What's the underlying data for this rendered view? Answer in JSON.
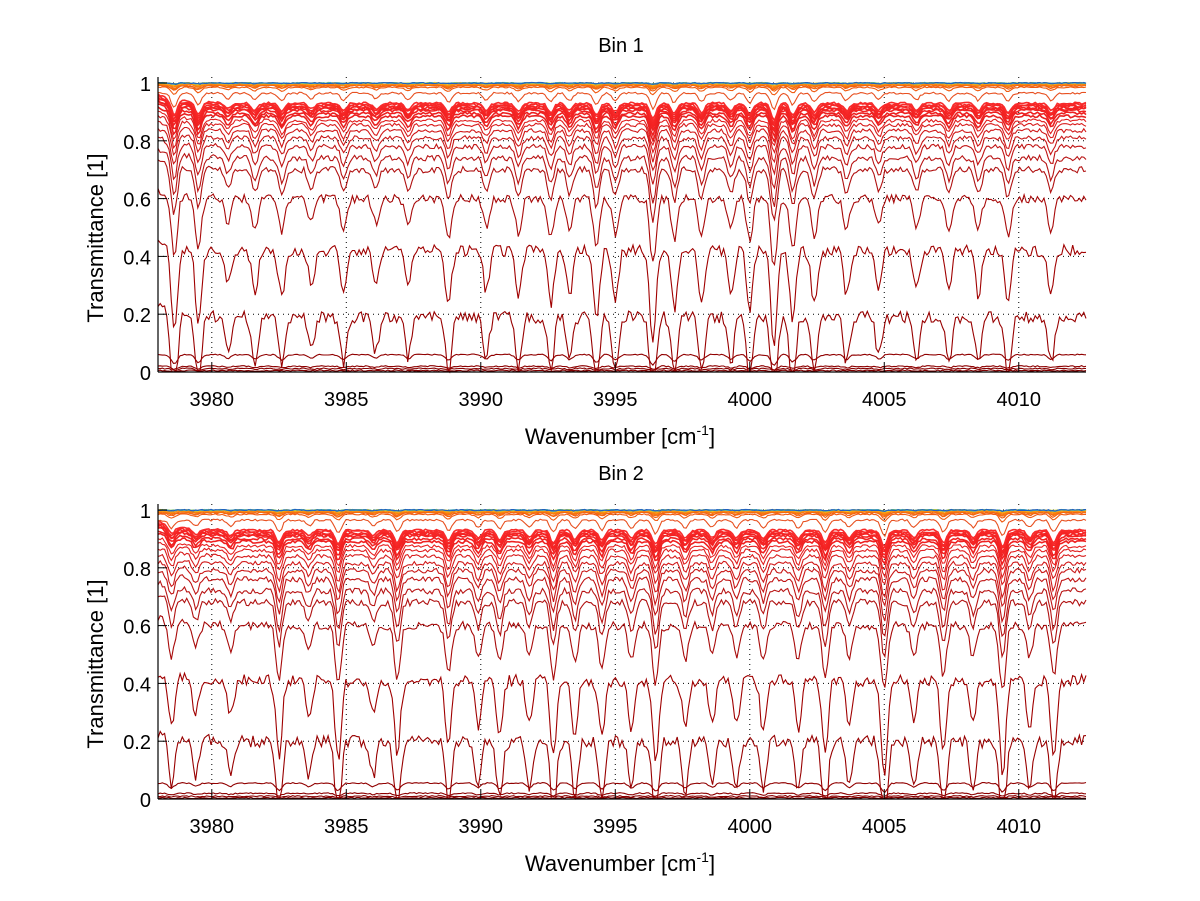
{
  "chart_data": [
    {
      "type": "line",
      "title": "Bin 1",
      "xlabel": "Wavenumber [cm",
      "xlabel_superscript": "-1",
      "xlabel_suffix": "]",
      "ylabel": "Transmittance [1]",
      "xlim": [
        3978.0,
        4012.5
      ],
      "ylim": [
        0,
        1.02
      ],
      "xticks": [
        3980,
        3985,
        3990,
        3995,
        4000,
        4005,
        4010
      ],
      "xtick_labels": [
        "3980",
        "3985",
        "3990",
        "3995",
        "4000",
        "4005",
        "4010"
      ],
      "yticks": [
        0,
        0.2,
        0.4,
        0.6,
        0.8,
        1
      ],
      "ytick_labels": [
        "0",
        "0.2",
        "0.4",
        "0.6",
        "0.8",
        "1"
      ],
      "grid": true,
      "grid_style": "dotted",
      "legend": "none",
      "series_count": 40,
      "series_baselines": [
        0.0,
        0.005,
        0.012,
        0.02,
        0.06,
        0.19,
        0.42,
        0.6,
        0.7,
        0.74,
        0.78,
        0.81,
        0.835,
        0.855,
        0.87,
        0.885,
        0.895,
        0.905,
        0.91,
        0.915,
        0.92,
        0.925,
        0.93,
        0.965,
        0.985,
        0.99,
        0.992,
        0.994,
        0.995,
        0.996,
        0.997,
        0.998,
        0.998,
        0.999,
        0.999,
        1.0,
        1.0,
        1.0,
        1.0,
        1.0
      ],
      "series_colors": [
        "#7a0000",
        "#800000",
        "#880000",
        "#8c0000",
        "#900000",
        "#980000",
        "#a00000",
        "#a80a0a",
        "#b01010",
        "#b81414",
        "#c01414",
        "#c81818",
        "#d01818",
        "#d81c1c",
        "#e01e1e",
        "#e82020",
        "#ee2020",
        "#f02222",
        "#f22222",
        "#f42222",
        "#f52424",
        "#f62828",
        "#f82a2a",
        "#e85020",
        "#f05a10",
        "#f26010",
        "#f46810",
        "#f57010",
        "#f67810",
        "#f88010",
        "#f98a10",
        "#fa9410",
        "#fa9e10",
        "#fbaa10",
        "#f8c020",
        "#e8d030",
        "#b8d040",
        "#70c070",
        "#40a0c0",
        "#2060c0"
      ],
      "absorption_lines": [
        {
          "x": 3978.6,
          "depth": 0.9
        },
        {
          "x": 3979.5,
          "depth": 0.75
        },
        {
          "x": 3980.6,
          "depth": 0.35
        },
        {
          "x": 3981.6,
          "depth": 0.45
        },
        {
          "x": 3982.6,
          "depth": 0.5
        },
        {
          "x": 3983.7,
          "depth": 0.35
        },
        {
          "x": 3984.9,
          "depth": 0.45
        },
        {
          "x": 3986.1,
          "depth": 0.35
        },
        {
          "x": 3987.3,
          "depth": 0.4
        },
        {
          "x": 3988.8,
          "depth": 0.55
        },
        {
          "x": 3990.2,
          "depth": 0.4
        },
        {
          "x": 3991.4,
          "depth": 0.5
        },
        {
          "x": 3992.6,
          "depth": 0.55
        },
        {
          "x": 3993.3,
          "depth": 0.45
        },
        {
          "x": 3994.3,
          "depth": 0.7
        },
        {
          "x": 3995.0,
          "depth": 0.5
        },
        {
          "x": 3996.4,
          "depth": 0.95
        },
        {
          "x": 3997.2,
          "depth": 0.6
        },
        {
          "x": 3998.2,
          "depth": 0.55
        },
        {
          "x": 3999.3,
          "depth": 0.45
        },
        {
          "x": 4000.0,
          "depth": 0.6
        },
        {
          "x": 4000.9,
          "depth": 1.0
        },
        {
          "x": 4001.6,
          "depth": 0.7
        },
        {
          "x": 4002.4,
          "depth": 0.55
        },
        {
          "x": 4003.6,
          "depth": 0.45
        },
        {
          "x": 4004.8,
          "depth": 0.4
        },
        {
          "x": 4006.2,
          "depth": 0.4
        },
        {
          "x": 4007.4,
          "depth": 0.45
        },
        {
          "x": 4008.5,
          "depth": 0.45
        },
        {
          "x": 4009.6,
          "depth": 0.55
        },
        {
          "x": 4011.2,
          "depth": 0.45
        }
      ]
    },
    {
      "type": "line",
      "title": "Bin 2",
      "xlabel": "Wavenumber [cm",
      "xlabel_superscript": "-1",
      "xlabel_suffix": "]",
      "ylabel": "Transmittance [1]",
      "xlim": [
        3978.0,
        4012.5
      ],
      "ylim": [
        0,
        1.02
      ],
      "xticks": [
        3980,
        3985,
        3990,
        3995,
        4000,
        4005,
        4010
      ],
      "xtick_labels": [
        "3980",
        "3985",
        "3990",
        "3995",
        "4000",
        "4005",
        "4010"
      ],
      "yticks": [
        0,
        0.2,
        0.4,
        0.6,
        0.8,
        1
      ],
      "ytick_labels": [
        "0",
        "0.2",
        "0.4",
        "0.6",
        "0.8",
        "1"
      ],
      "grid": true,
      "grid_style": "dotted",
      "legend": "none",
      "series_count": 40,
      "series_baselines": [
        0.0,
        0.004,
        0.01,
        0.02,
        0.055,
        0.2,
        0.41,
        0.6,
        0.68,
        0.72,
        0.76,
        0.79,
        0.815,
        0.84,
        0.86,
        0.875,
        0.89,
        0.9,
        0.91,
        0.915,
        0.92,
        0.925,
        0.93,
        0.965,
        0.985,
        0.99,
        0.992,
        0.994,
        0.995,
        0.996,
        0.997,
        0.998,
        0.998,
        0.999,
        0.999,
        1.0,
        1.0,
        1.0,
        1.0,
        1.0
      ],
      "series_colors": [
        "#7a0000",
        "#800000",
        "#880000",
        "#8c0000",
        "#900000",
        "#980000",
        "#a00000",
        "#a80a0a",
        "#b01010",
        "#b81414",
        "#c01414",
        "#c81818",
        "#d01818",
        "#d81c1c",
        "#e01e1e",
        "#e82020",
        "#ee2020",
        "#f02222",
        "#f22222",
        "#f42222",
        "#f52424",
        "#f62828",
        "#f82a2a",
        "#e85020",
        "#f05a10",
        "#f26010",
        "#f46810",
        "#f57010",
        "#f67810",
        "#f88010",
        "#f98a10",
        "#fa9410",
        "#fa9e10",
        "#fbaa10",
        "#f8c020",
        "#e8d030",
        "#b8d040",
        "#70c070",
        "#40a0c0",
        "#2060c0"
      ],
      "absorption_lines": [
        {
          "x": 3978.5,
          "depth": 0.5
        },
        {
          "x": 3979.4,
          "depth": 0.35
        },
        {
          "x": 3980.7,
          "depth": 0.35
        },
        {
          "x": 3982.5,
          "depth": 0.75
        },
        {
          "x": 3983.6,
          "depth": 0.35
        },
        {
          "x": 3984.7,
          "depth": 0.8
        },
        {
          "x": 3986.0,
          "depth": 0.35
        },
        {
          "x": 3986.9,
          "depth": 0.75
        },
        {
          "x": 3988.8,
          "depth": 0.65
        },
        {
          "x": 3989.9,
          "depth": 0.45
        },
        {
          "x": 3990.7,
          "depth": 0.55
        },
        {
          "x": 3991.8,
          "depth": 0.45
        },
        {
          "x": 3992.7,
          "depth": 0.75
        },
        {
          "x": 3993.5,
          "depth": 0.55
        },
        {
          "x": 3994.5,
          "depth": 0.6
        },
        {
          "x": 3995.6,
          "depth": 0.5
        },
        {
          "x": 3996.5,
          "depth": 0.85
        },
        {
          "x": 3997.6,
          "depth": 0.5
        },
        {
          "x": 3998.6,
          "depth": 0.45
        },
        {
          "x": 3999.5,
          "depth": 0.45
        },
        {
          "x": 4000.5,
          "depth": 0.5
        },
        {
          "x": 4001.8,
          "depth": 0.5
        },
        {
          "x": 4002.8,
          "depth": 0.75
        },
        {
          "x": 4003.7,
          "depth": 0.45
        },
        {
          "x": 4005.0,
          "depth": 0.95
        },
        {
          "x": 4006.1,
          "depth": 0.45
        },
        {
          "x": 4007.2,
          "depth": 0.75
        },
        {
          "x": 4008.3,
          "depth": 0.45
        },
        {
          "x": 4009.4,
          "depth": 0.95
        },
        {
          "x": 4010.4,
          "depth": 0.45
        },
        {
          "x": 4011.3,
          "depth": 0.75
        }
      ]
    }
  ]
}
